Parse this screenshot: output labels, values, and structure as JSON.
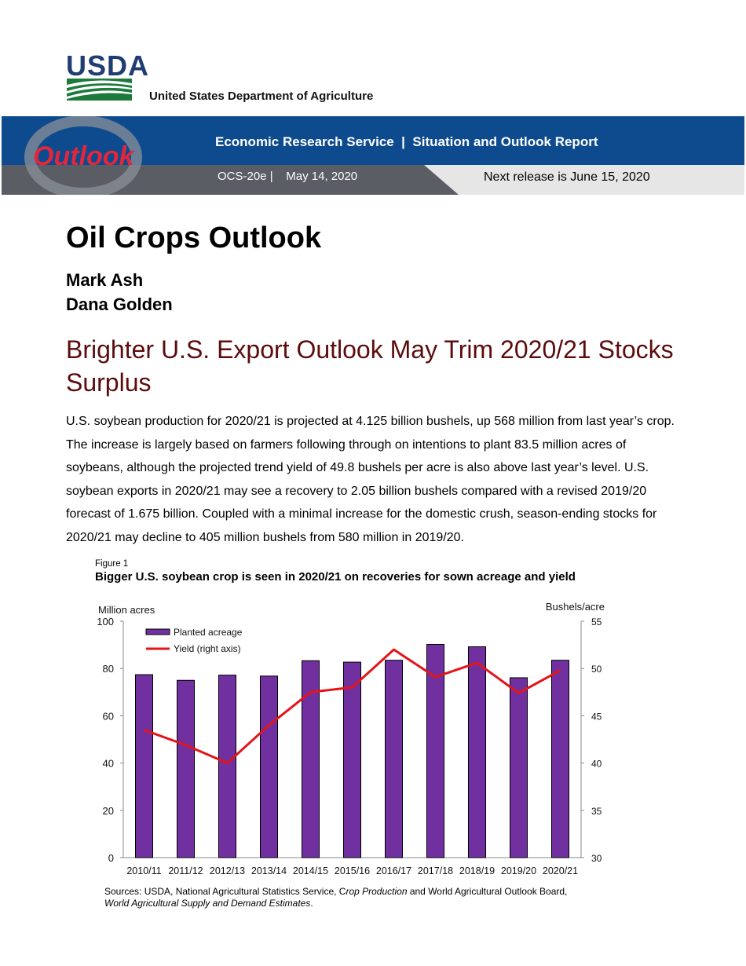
{
  "header": {
    "logo_text": "USDA",
    "department": "United States Department of Agriculture",
    "banner_title": "Economic Research Service  |  Situation and Outlook Report",
    "report_id": "OCS-20e |    May 14, 2020",
    "next_release": "Next release is June 15, 2020",
    "outlook_logo_text": "Outlook"
  },
  "report": {
    "title": "Oil Crops Outlook",
    "authors": [
      "Mark Ash",
      "Dana Golden"
    ],
    "headline": "Brighter U.S. Export Outlook May Trim 2020/21 Stocks Surplus",
    "paragraph": "U.S. soybean production for 2020/21 is projected at 4.125 billion bushels, up 568 million from last year’s crop. The increase is largely based on farmers following through on intentions to plant 83.5 million acres of soybeans, although the projected trend yield of 49.8 bushels per acre is also above last year’s level. U.S. soybean exports in 2020/21 may see a recovery to 2.05 billion bushels compared with a revised 2019/20 forecast of 1.675 billion. Coupled with a minimal increase for the domestic crush, season-ending stocks for 2020/21 may decline to 405 million bushels from 580 million in 2019/20."
  },
  "figure": {
    "label": "Figure 1",
    "title": "Bigger U.S. soybean crop is seen in 2020/21 on recoveries for sown acreage and yield",
    "sources_prefix": "Sources: USDA, National Agricultural Statistics Service, C",
    "sources_italic1": "rop Production",
    "sources_middle": " and World Agricultural Outlook Board,",
    "sources_italic2": "World Agricultural Supply and Demand Estimates",
    "sources_end": "."
  },
  "chart_data": {
    "type": "bar",
    "categories": [
      "2010/11",
      "2011/12",
      "2012/13",
      "2013/14",
      "2014/15",
      "2015/16",
      "2016/17",
      "2017/18",
      "2018/19",
      "2019/20",
      "2020/21"
    ],
    "series": [
      {
        "name": "Planted acreage",
        "type": "bar",
        "axis": "left",
        "color": "#7030a0",
        "values": [
          77.4,
          75.0,
          77.2,
          76.8,
          83.3,
          82.7,
          83.5,
          90.2,
          89.2,
          76.1,
          83.5
        ]
      },
      {
        "name": "Yield (right axis)",
        "type": "line",
        "axis": "right",
        "color": "#e3141a",
        "values": [
          43.5,
          41.9,
          40.0,
          44.0,
          47.5,
          48.0,
          52.0,
          49.1,
          50.6,
          47.4,
          49.8
        ]
      }
    ],
    "ylabel": "Million acres",
    "y2label": "Bushels/acre",
    "ylim": [
      0,
      100
    ],
    "y2lim": [
      30,
      55
    ],
    "yticks": [
      0,
      20,
      40,
      60,
      80,
      100
    ],
    "y2ticks": [
      30,
      35,
      40,
      45,
      50,
      55
    ],
    "grid": false,
    "legend": "top-left"
  }
}
